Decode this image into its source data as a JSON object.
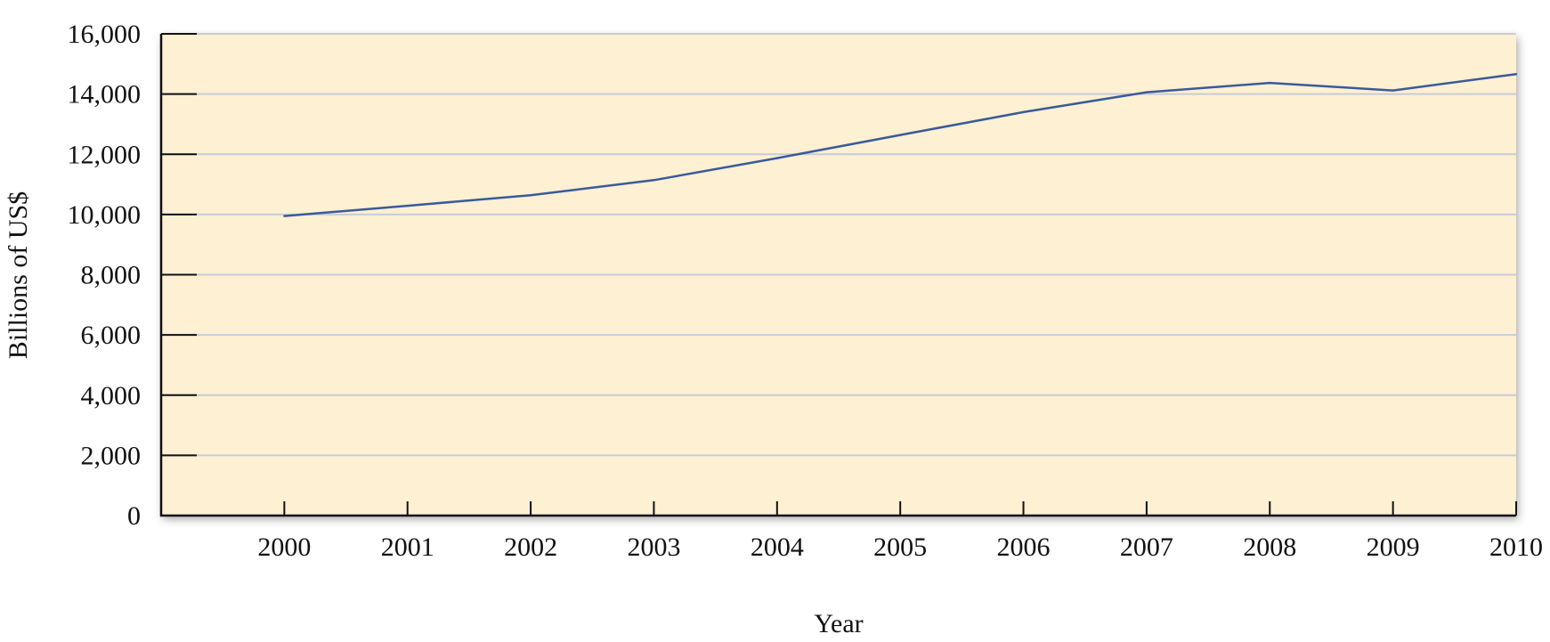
{
  "chart_data": {
    "type": "line",
    "title": "",
    "xlabel": "Year",
    "ylabel": "Billions of US$",
    "x": [
      2000,
      2001,
      2002,
      2003,
      2004,
      2005,
      2006,
      2007,
      2008,
      2009,
      2010
    ],
    "series": [
      {
        "values": [
          9950,
          10290,
          10640,
          11140,
          11870,
          12640,
          13400,
          14060,
          14370,
          14120,
          14660
        ],
        "color": "#3a5a9a"
      }
    ],
    "ylim": [
      0,
      16000
    ],
    "xlim": [
      1999,
      2010
    ],
    "yticks": [
      0,
      2000,
      4000,
      6000,
      8000,
      10000,
      12000,
      14000,
      16000
    ],
    "ytick_labels": [
      "0",
      "2,000",
      "4,000",
      "6,000",
      "8,000",
      "10,000",
      "12,000",
      "14,000",
      "16,000"
    ],
    "xtick_labels": [
      "2000",
      "2001",
      "2002",
      "2003",
      "2004",
      "2005",
      "2006",
      "2007",
      "2008",
      "2009",
      "2010"
    ],
    "grid": true,
    "background_color": "#fdf0d3",
    "gridline_color": "#c8ccd6"
  }
}
